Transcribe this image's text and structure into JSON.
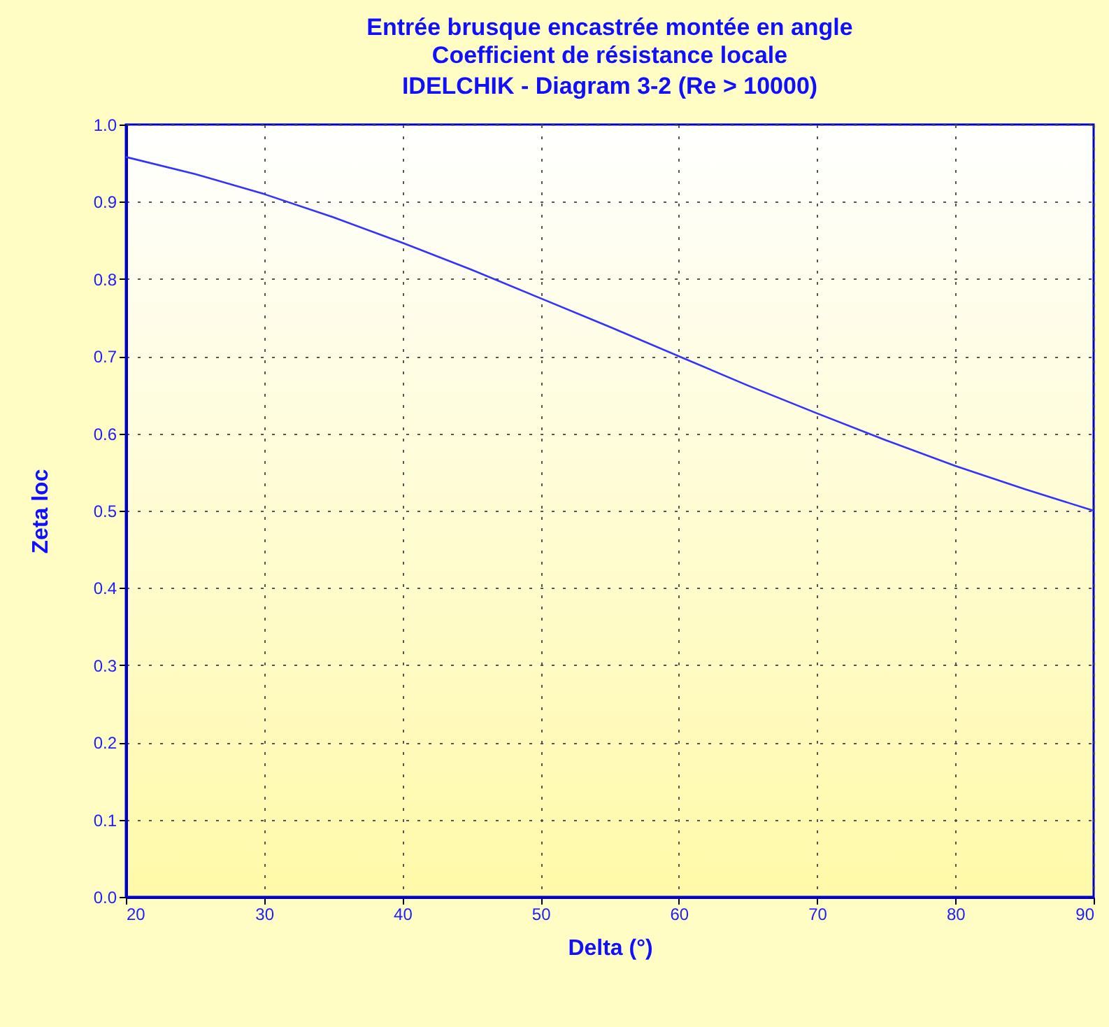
{
  "chart_data": {
    "type": "line",
    "title": "Entrée brusque encastrée montée en angle",
    "subtitle": "Coefficient de résistance locale\nIDELCHIK - Diagram 3-2 (Re > 10000)",
    "xlabel": "Delta (°)",
    "ylabel": "Zeta loc",
    "x": [
      20,
      25,
      30,
      35,
      40,
      45,
      50,
      55,
      60,
      65,
      70,
      75,
      80,
      85,
      90
    ],
    "series": [
      {
        "color": "#3333ff",
        "values": [
          0.958,
          0.936,
          0.91,
          0.88,
          0.847,
          0.812,
          0.775,
          0.738,
          0.7,
          0.662,
          0.626,
          0.591,
          0.558,
          0.528,
          0.5
        ]
      }
    ],
    "xlim": [
      20,
      90
    ],
    "xticks": [
      20,
      30,
      40,
      50,
      60,
      70,
      80,
      90
    ],
    "ylim": [
      0,
      1
    ],
    "yticks": [
      {
        "value": 0,
        "label": "0.0"
      },
      {
        "value": 0.1,
        "label": "0.1"
      },
      {
        "value": 0.2,
        "label": "0.2"
      },
      {
        "value": 0.3,
        "label": "0.3"
      },
      {
        "value": 0.4,
        "label": "0.4"
      },
      {
        "value": 0.5,
        "label": "0.5"
      },
      {
        "value": 0.6,
        "label": "0.6"
      },
      {
        "value": 0.7,
        "label": "0.7"
      },
      {
        "value": 0.8,
        "label": "0.8"
      },
      {
        "value": 0.9,
        "label": "0.9"
      },
      {
        "value": 1,
        "label": "1.0"
      }
    ],
    "grid": true,
    "marker": "none",
    "line_style": "solid"
  }
}
